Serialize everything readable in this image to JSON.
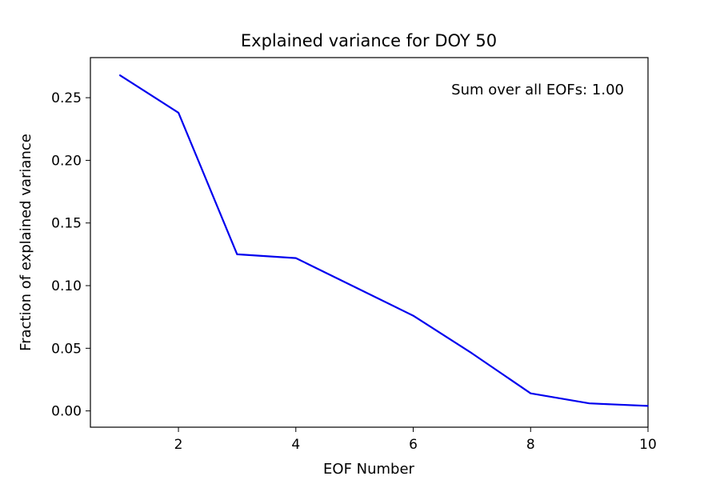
{
  "chart_data": {
    "type": "line",
    "title": "Explained variance for DOY 50",
    "xlabel": "EOF Number",
    "ylabel": "Fraction of explained variance",
    "annotation": "Sum over all EOFs: 1.00",
    "xlim": [
      0.5,
      10
    ],
    "ylim": [
      -0.013,
      0.282
    ],
    "xticks": [
      2,
      4,
      6,
      8,
      10
    ],
    "xtick_labels": [
      "2",
      "4",
      "6",
      "8",
      "10"
    ],
    "yticks": [
      0.0,
      0.05,
      0.1,
      0.15,
      0.2,
      0.25
    ],
    "ytick_labels": [
      "0.00",
      "0.05",
      "0.10",
      "0.15",
      "0.20",
      "0.25"
    ],
    "grid": false,
    "series": [
      {
        "color": "#0000ee",
        "x": [
          1,
          2,
          3,
          4,
          5,
          6,
          7,
          8,
          9,
          10
        ],
        "y": [
          0.268,
          0.238,
          0.125,
          0.122,
          0.099,
          0.076,
          0.046,
          0.014,
          0.006,
          0.004
        ]
      }
    ]
  }
}
